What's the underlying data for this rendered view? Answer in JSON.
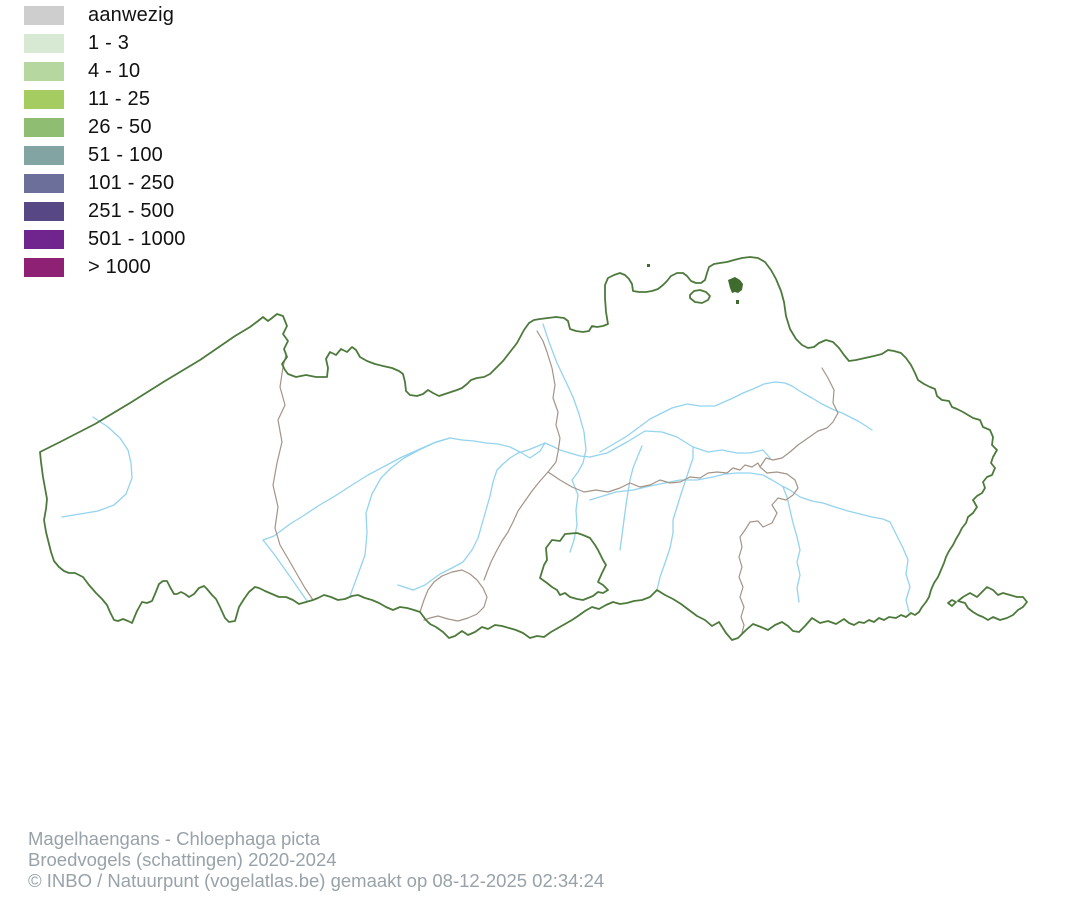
{
  "legend": {
    "items": [
      {
        "label": "aanwezig",
        "color": "#cecece"
      },
      {
        "label": "1 - 3",
        "color": "#d8e9d3"
      },
      {
        "label": "4 - 10",
        "color": "#b6d8a0"
      },
      {
        "label": "11 - 25",
        "color": "#a5cc60"
      },
      {
        "label": "26 - 50",
        "color": "#8fbe72"
      },
      {
        "label": "51 - 100",
        "color": "#82a5a4"
      },
      {
        "label": "101 - 250",
        "color": "#6d6f9b"
      },
      {
        "label": "251 - 500",
        "color": "#574784"
      },
      {
        "label": "501 - 1000",
        "color": "#70258e"
      },
      {
        "label": "> 1000",
        "color": "#8e2173"
      }
    ]
  },
  "map": {
    "colors": {
      "region_border": "#4d7a3c",
      "province_border": "#a39488",
      "river": "#94d3ee",
      "occupied_cell": "#3f6b2f",
      "background": "#ffffff"
    }
  },
  "footer": {
    "species_line": "Magelhaengans - Chloephaga picta",
    "period_line": "Broedvogels (schattingen) 2020-2024",
    "copyright_line": "© INBO / Natuurpunt (vogelatlas.be) gemaakt op 08-12-2025 02:34:24"
  }
}
